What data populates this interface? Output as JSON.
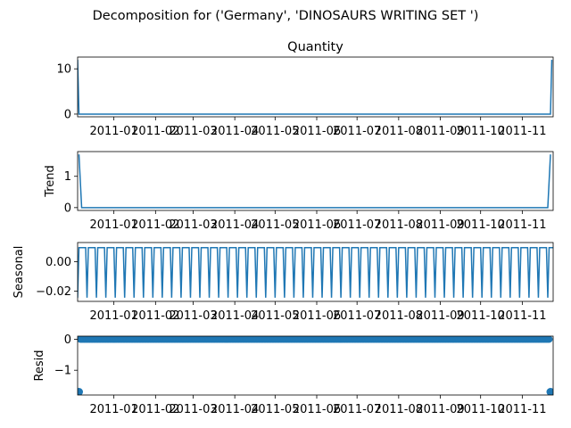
{
  "figure": {
    "suptitle": "Decomposition for ('Germany', 'DINOSAURS  WRITING SET ')"
  },
  "colors": {
    "line": "#1f77b4",
    "axes": "#000000",
    "background": "#ffffff"
  },
  "chart_data": [
    {
      "type": "line",
      "title": "Quantity",
      "ylabel": "",
      "ylim": [
        -0.6,
        12.6
      ],
      "yticks": [
        0,
        10
      ],
      "x": [
        "2010-12-05",
        "2010-12-12",
        "...daily series...",
        "2011-11-23"
      ],
      "x_range": [
        "2010-12-05",
        "2011-11-24"
      ],
      "xtick_labels": [
        "2011-01",
        "2011-02",
        "2011-03",
        "2011-04",
        "2011-05",
        "2011-06",
        "2011-07",
        "2011-08",
        "2011-09",
        "2011-10",
        "2011-11"
      ],
      "series": [
        {
          "points": [
            [
              "2010-12-05",
              12
            ],
            [
              "2010-12-06",
              0
            ],
            [
              "2011-11-22",
              0
            ],
            [
              "2011-11-23",
              12
            ]
          ]
        }
      ]
    },
    {
      "type": "line",
      "title": "",
      "ylabel": "Trend",
      "ylim": [
        -0.09,
        1.79
      ],
      "yticks": [
        0,
        1
      ],
      "x_range": [
        "2010-12-05",
        "2011-11-24"
      ],
      "xtick_labels": [
        "2011-01",
        "2011-02",
        "2011-03",
        "2011-04",
        "2011-05",
        "2011-06",
        "2011-07",
        "2011-08",
        "2011-09",
        "2011-10",
        "2011-11"
      ],
      "series": [
        {
          "points": [
            [
              "2010-12-06",
              1.7
            ],
            [
              "2010-12-08",
              0
            ],
            [
              "2011-11-20",
              0
            ],
            [
              "2011-11-22",
              1.7
            ]
          ]
        }
      ]
    },
    {
      "type": "line",
      "title": "",
      "ylabel": "Seasonal",
      "ylim": [
        -0.027,
        0.013
      ],
      "yticks": [
        0.0,
        -0.02
      ],
      "ytick_labels": [
        "0.00",
        "−0.02"
      ],
      "x_range": [
        "2010-12-05",
        "2011-11-24"
      ],
      "xtick_labels": [
        "2011-01",
        "2011-02",
        "2011-03",
        "2011-04",
        "2011-05",
        "2011-06",
        "2011-07",
        "2011-08",
        "2011-09",
        "2011-10",
        "2011-11"
      ],
      "seasonal_pattern": {
        "period_days": 7,
        "high": 0.0095,
        "low": -0.0245,
        "low_days_per_period": 1
      }
    },
    {
      "type": "scatter",
      "title": "",
      "ylabel": "Resid",
      "ylim": [
        -1.8,
        0.1
      ],
      "yticks": [
        0,
        -1
      ],
      "ytick_labels": [
        "0",
        "−1"
      ],
      "x_range": [
        "2010-12-05",
        "2011-11-24"
      ],
      "xtick_labels": [
        "2011-01",
        "2011-02",
        "2011-03",
        "2011-04",
        "2011-05",
        "2011-06",
        "2011-07",
        "2011-08",
        "2011-09",
        "2011-10",
        "2011-11"
      ],
      "resid_pattern": {
        "baseline": 0,
        "outliers": [
          [
            "2010-12-06",
            -1.7
          ],
          [
            "2011-11-22",
            -1.7
          ]
        ]
      }
    }
  ]
}
